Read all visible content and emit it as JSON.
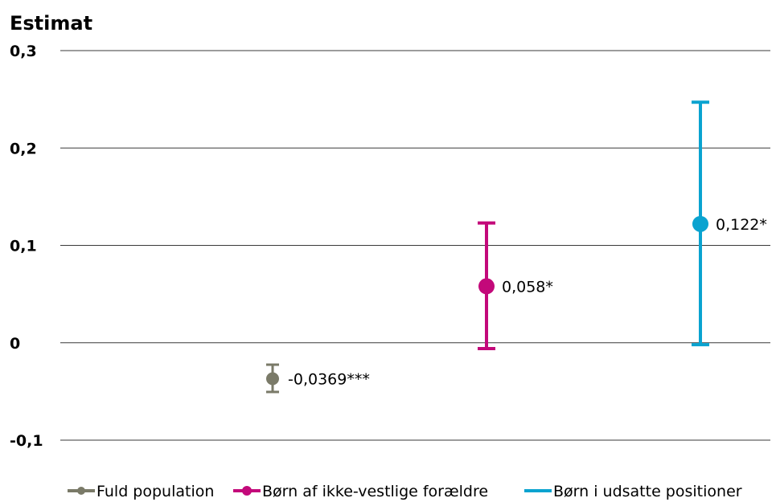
{
  "chart_data": {
    "type": "scatter",
    "title": "",
    "xlabel": "",
    "ylabel": "Estimat",
    "ylim": [
      -0.1,
      0.3
    ],
    "yticks": [
      {
        "value": -0.1,
        "label": "-0,1"
      },
      {
        "value": 0,
        "label": "0"
      },
      {
        "value": 0.1,
        "label": "0,1"
      },
      {
        "value": 0.2,
        "label": "0,2"
      },
      {
        "value": 0.3,
        "label": "0,3"
      }
    ],
    "grid": true,
    "legend_position": "bottom",
    "series": [
      {
        "name": "Fuld population",
        "color": "#7a7a68",
        "estimate": -0.0369,
        "ci_low": -0.0505,
        "ci_high": -0.0225,
        "label": "-0,0369***",
        "marker": "small"
      },
      {
        "name": "Børn af ikke-vestlige forældre",
        "color": "#c3097a",
        "estimate": 0.058,
        "ci_low": -0.006,
        "ci_high": 0.123,
        "label": "0,058*",
        "marker": "large"
      },
      {
        "name": "Børn i udsatte positioner",
        "color": "#0aa3d0",
        "estimate": 0.122,
        "ci_low": -0.002,
        "ci_high": 0.247,
        "label": "0,122*",
        "marker": "large"
      }
    ]
  }
}
